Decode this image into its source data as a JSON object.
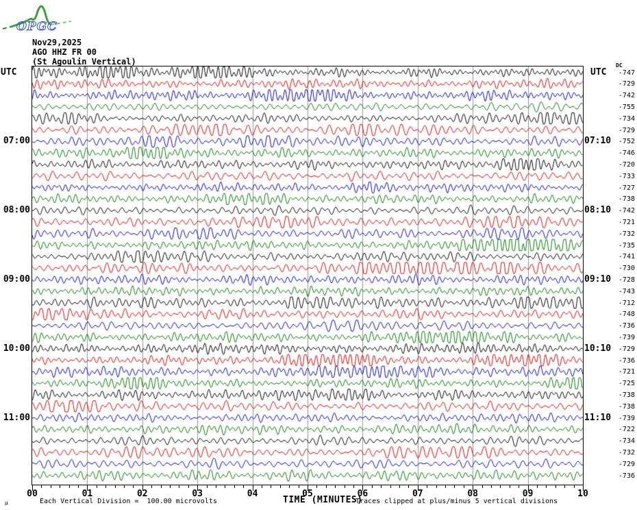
{
  "logo": {
    "text": "OPGC"
  },
  "header": {
    "date": "Nov29,2025",
    "station": "AGO HHZ FR 00",
    "description": "(St Agoulin Vertical)"
  },
  "left_axis": {
    "title": "UTC",
    "labels": [
      {
        "row": 6,
        "text": "07:00"
      },
      {
        "row": 12,
        "text": "08:00"
      },
      {
        "row": 18,
        "text": "09:00"
      },
      {
        "row": 24,
        "text": "10:00"
      },
      {
        "row": 30,
        "text": "11:00"
      }
    ]
  },
  "right_axis": {
    "title": "UTC",
    "labels": [
      {
        "row": 6,
        "text": "07:10"
      },
      {
        "row": 12,
        "text": "08:10"
      },
      {
        "row": 18,
        "text": "09:10"
      },
      {
        "row": 24,
        "text": "10:10"
      },
      {
        "row": 30,
        "text": "11:10"
      }
    ]
  },
  "dc_column": {
    "header": "DC"
  },
  "x_axis": {
    "title": "TIME (MINUTES)",
    "tick_labels": [
      "00",
      "01",
      "02",
      "03",
      "04",
      "05",
      "06",
      "07",
      "08",
      "09",
      "10"
    ],
    "minor_ticks_per_division": 6
  },
  "footnotes": {
    "mu_glyph": "µ",
    "left": "Each Vertical Division =  100.00 microvolts",
    "right": "Traces clipped at plus/minus 5 vertical divisions"
  },
  "colors": {
    "grid": "#909090",
    "text": "#000000",
    "logo_green": "#3f9e3f",
    "logo_blue": "#3b5bc7"
  },
  "chart_data": {
    "type": "line",
    "subtype": "helicorder_seismogram",
    "title": "AGO HHZ FR 00 (St Agoulin Vertical) Nov29,2025",
    "xlabel": "TIME (MINUTES)",
    "x_range": [
      0,
      10
    ],
    "minutes_per_line": 10,
    "num_lines": 36,
    "first_line_start_utc": "06:00",
    "last_line_end_utc": "12:00",
    "left_time_labels": [
      "07:00",
      "08:00",
      "09:00",
      "10:00",
      "11:00"
    ],
    "right_time_labels": [
      "07:10",
      "08:10",
      "09:10",
      "10:10",
      "11:10"
    ],
    "trace_color_cycle": [
      "#000000",
      "#dd0000",
      "#0000cc",
      "#007700"
    ],
    "dc_offsets_microvolts": [
      -747,
      -729,
      -742,
      -755,
      -734,
      -729,
      -752,
      -746,
      -720,
      -733,
      -727,
      -738,
      -742,
      -721,
      -732,
      -735,
      -741,
      -730,
      -728,
      -743,
      -712,
      -748,
      -736,
      -739,
      -729,
      -736,
      -721,
      -725,
      -738,
      -738,
      -739,
      -722,
      -734,
      -732,
      -729,
      -736
    ],
    "microvolts_per_division": 100,
    "clip_divisions": 5,
    "minor_tick_seconds": 10,
    "grid_minutes": 1,
    "waveform_note": "continuous microseismic background noise, amplitude roughly 0.2-0.8 vertical divisions with slow beating; exact samples not recoverable from raster, synthesized deterministically"
  }
}
